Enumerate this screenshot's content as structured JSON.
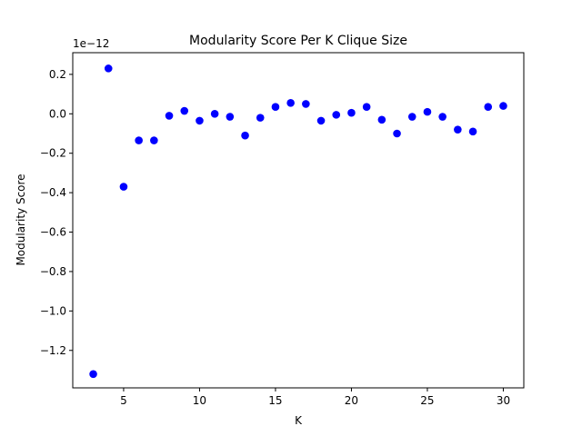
{
  "chart_data": {
    "type": "scatter",
    "title": "Modularity Score Per K Clique Size",
    "xlabel": "K",
    "ylabel": "Modularity Score",
    "y_offset_label": "1e−12",
    "y_scale_factor": 1e-12,
    "xlim": [
      1.65,
      31.35
    ],
    "ylim": [
      -1.39,
      0.31
    ],
    "x_ticks": [
      5,
      10,
      15,
      20,
      25,
      30
    ],
    "x_tick_labels": [
      "5",
      "10",
      "15",
      "20",
      "25",
      "30"
    ],
    "y_ticks": [
      0.2,
      0.0,
      -0.2,
      -0.4,
      -0.6,
      -0.8,
      -1.0,
      -1.2
    ],
    "y_tick_labels": [
      "0.2",
      "0.0",
      "−0.2",
      "−0.4",
      "−0.6",
      "−0.8",
      "−1.0",
      "−1.2"
    ],
    "grid": false,
    "marker_color": "#0000ff",
    "series": [
      {
        "x": [
          3,
          4,
          5,
          6,
          7,
          8,
          9,
          10,
          11,
          12,
          13,
          14,
          15,
          16,
          17,
          18,
          19,
          20,
          21,
          22,
          23,
          24,
          25,
          26,
          27,
          28,
          29,
          30
        ],
        "y": [
          -1.32,
          0.23,
          -0.37,
          -0.135,
          -0.135,
          -0.01,
          0.015,
          -0.035,
          0.0,
          -0.015,
          -0.11,
          -0.02,
          0.035,
          0.055,
          0.05,
          -0.035,
          -0.005,
          0.005,
          0.035,
          -0.03,
          -0.1,
          -0.015,
          0.01,
          -0.015,
          -0.08,
          -0.09,
          0.035,
          0.04
        ]
      }
    ]
  }
}
